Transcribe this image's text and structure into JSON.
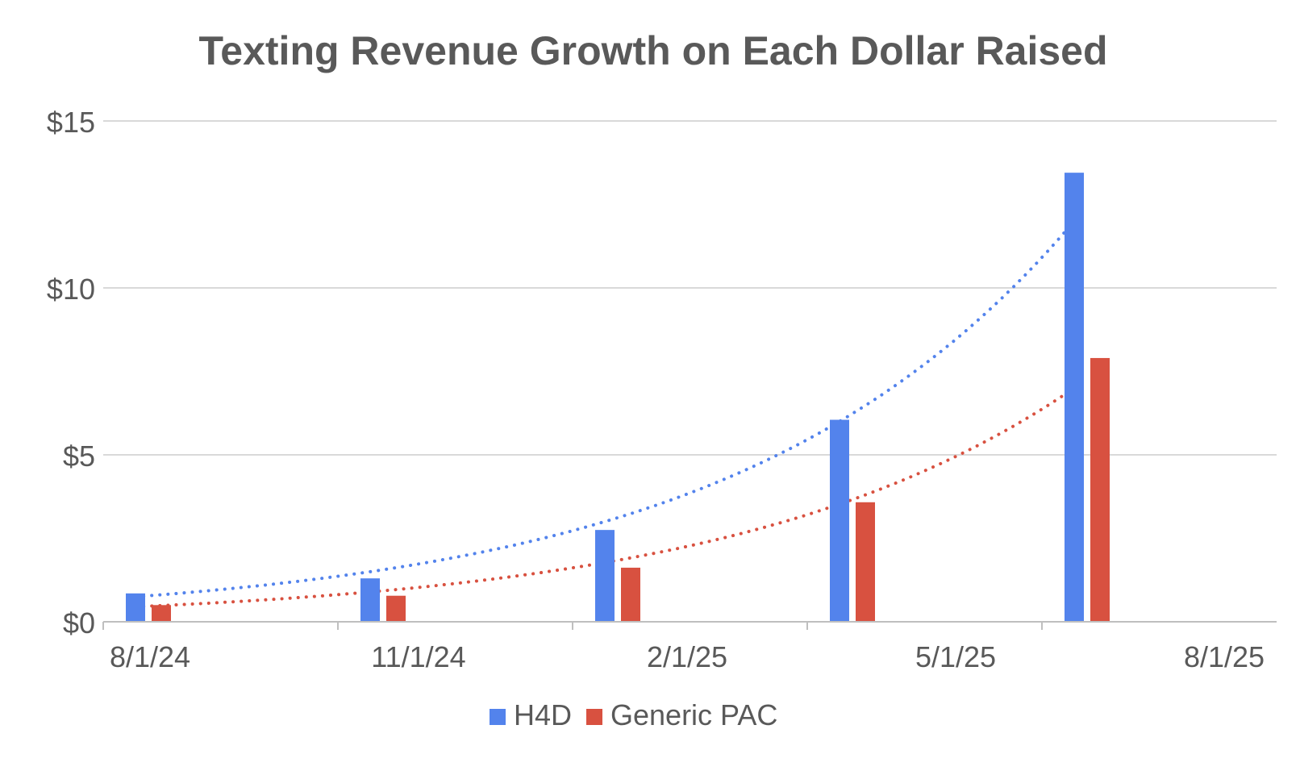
{
  "chart_data": {
    "type": "bar",
    "title": "Texting Revenue Growth on Each Dollar Raised",
    "xlabel": "",
    "ylabel": "",
    "categories": [
      "8/1/24",
      "11/1/24",
      "2/1/25",
      "5/1/25",
      "8/1/25"
    ],
    "ylim": [
      0,
      15
    ],
    "yticks": [
      0,
      5,
      10,
      15
    ],
    "ytick_labels": [
      "$0",
      "$5",
      "$10",
      "$15"
    ],
    "grid": true,
    "legend_position": "bottom",
    "series": [
      {
        "name": "H4D",
        "color": "#5383EC",
        "values": [
          0.85,
          1.3,
          2.75,
          6.05,
          13.45
        ],
        "trendline": {
          "style": "dotted",
          "type": "exponential",
          "values": [
            0.75,
            1.45,
            2.95,
            5.9,
            12.35
          ]
        }
      },
      {
        "name": "Generic PAC",
        "color": "#D85140",
        "values": [
          0.5,
          0.78,
          1.62,
          3.58,
          7.9
        ],
        "trendline": {
          "style": "dotted",
          "type": "exponential",
          "values": [
            0.45,
            0.85,
            1.72,
            3.5,
            7.2
          ]
        }
      }
    ]
  },
  "colors": {
    "title": "#595959",
    "tick_label": "#595959",
    "gridline": "#D9D9D9",
    "axis": "#BFBFBF"
  }
}
